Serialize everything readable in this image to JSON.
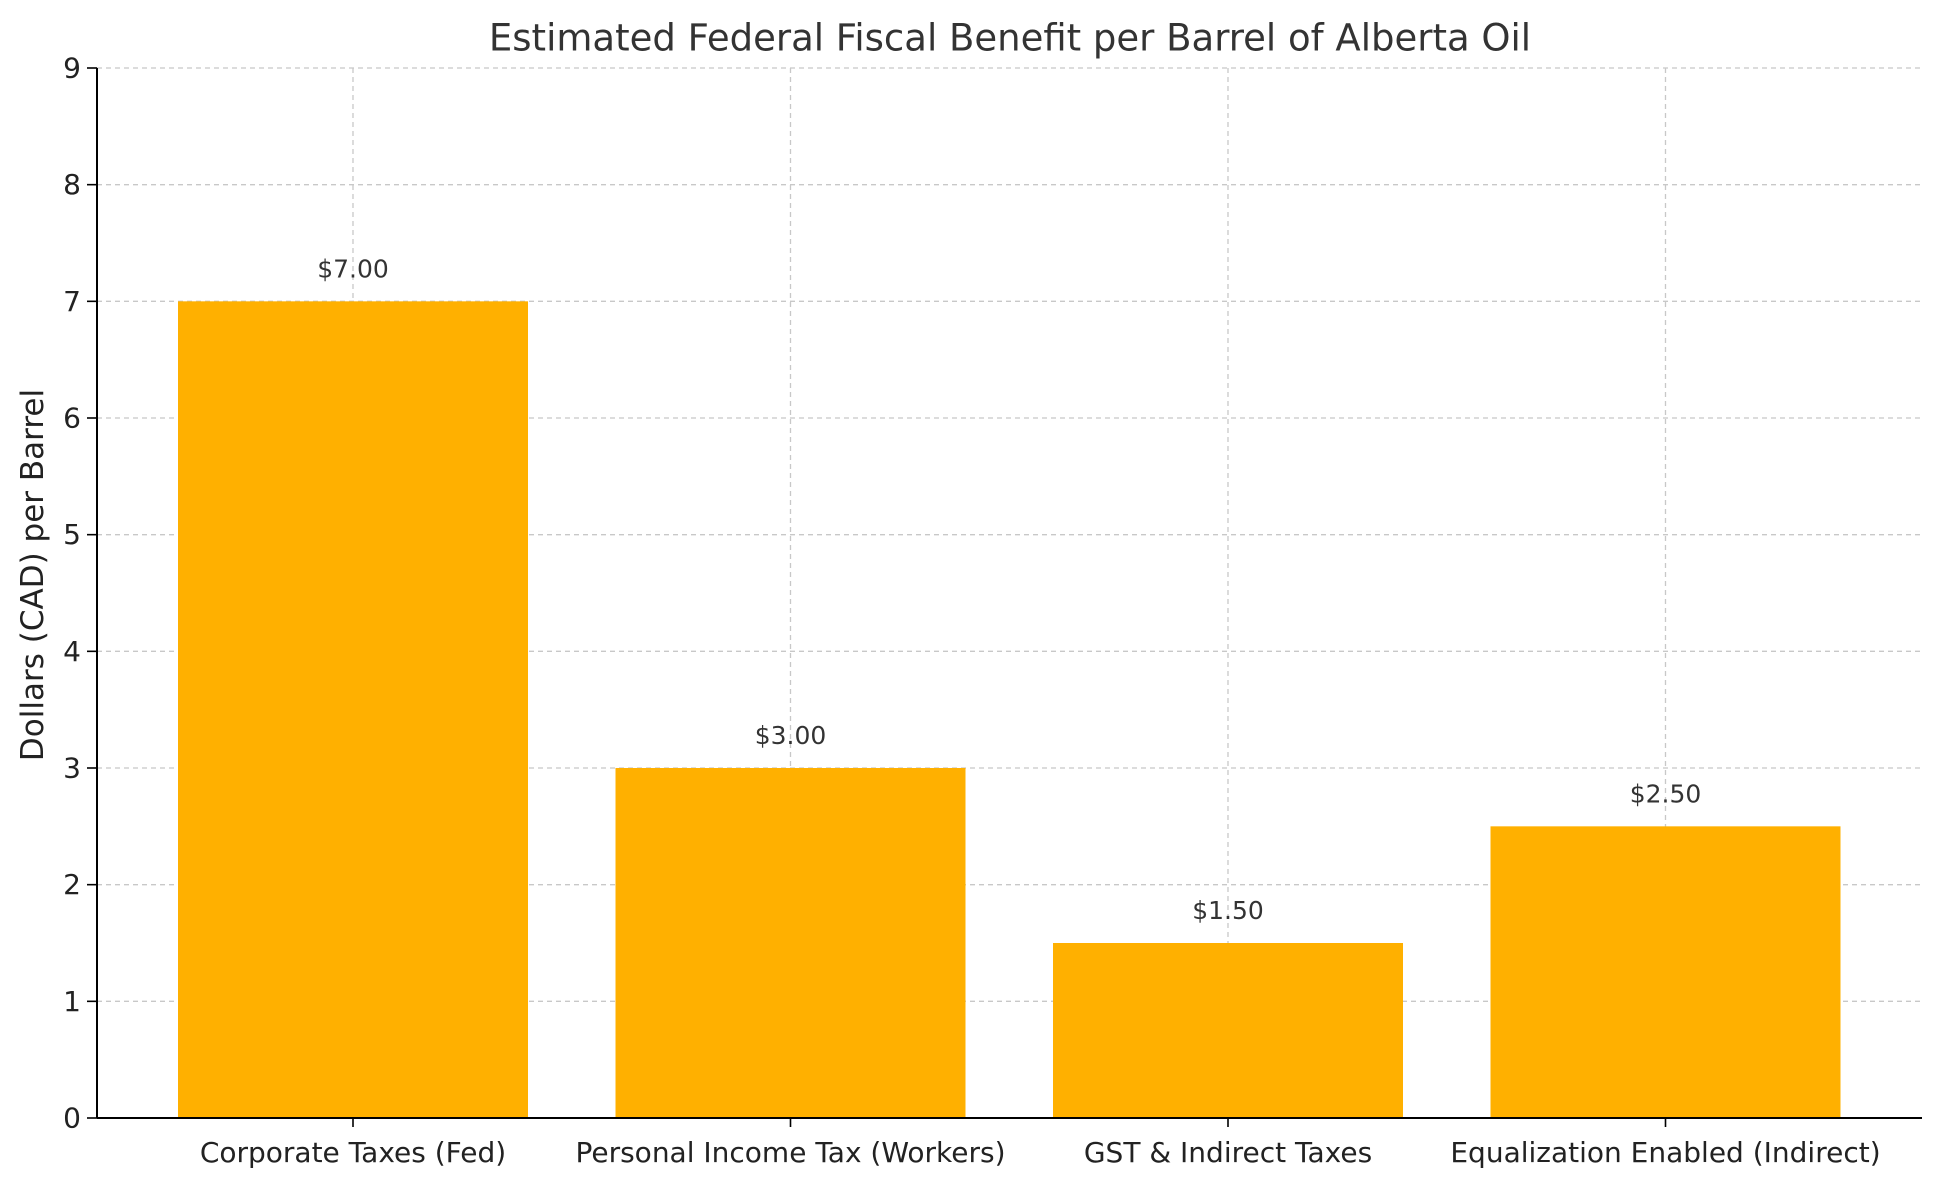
{
  "chart_data": {
    "type": "bar",
    "title": "Estimated Federal Fiscal Benefit per Barrel of Alberta Oil",
    "xlabel": "",
    "ylabel": "Dollars (CAD) per Barrel",
    "categories": [
      "Corporate Taxes (Fed)",
      "Personal Income Tax (Workers)",
      "GST & Indirect Taxes",
      "Equalization Enabled (Indirect)"
    ],
    "values": [
      7.0,
      3.0,
      1.5,
      2.5
    ],
    "data_labels": [
      "$7.00",
      "$3.00",
      "$1.50",
      "$2.50"
    ],
    "ylim": [
      0,
      9
    ],
    "yticks": [
      "0",
      "1",
      "2",
      "3",
      "4",
      "5",
      "6",
      "7",
      "8",
      "9"
    ],
    "grid": true,
    "legend": "none",
    "bar_color": "#FFB000"
  }
}
